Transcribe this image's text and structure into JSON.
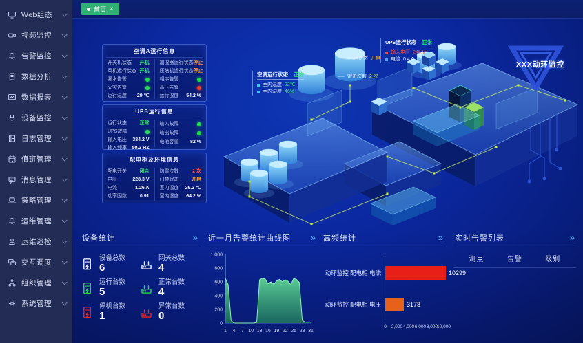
{
  "icons": {
    "more": "»",
    "close": "×"
  },
  "tab_bar": {
    "home_tab": "首页"
  },
  "sidebar": {
    "items": [
      {
        "id": "web",
        "label": "Web组态",
        "icon": "monitor-icon"
      },
      {
        "id": "video",
        "label": "视频监控",
        "icon": "camera-icon"
      },
      {
        "id": "alarm",
        "label": "告警监控",
        "icon": "bell-icon"
      },
      {
        "id": "analysis",
        "label": "数据分析",
        "icon": "doc-icon"
      },
      {
        "id": "report",
        "label": "数据报表",
        "icon": "report-icon"
      },
      {
        "id": "device",
        "label": "设备监控",
        "icon": "plug-icon"
      },
      {
        "id": "log",
        "label": "日志管理",
        "icon": "log-icon"
      },
      {
        "id": "duty",
        "label": "值班管理",
        "icon": "calendar-icon"
      },
      {
        "id": "message",
        "label": "消息管理",
        "icon": "message-icon"
      },
      {
        "id": "strategy",
        "label": "策略管理",
        "icon": "laptop-icon"
      },
      {
        "id": "ops",
        "label": "运维管理",
        "icon": "bell-icon"
      },
      {
        "id": "inspect",
        "label": "运维巡检",
        "icon": "user-icon"
      },
      {
        "id": "dispatch",
        "label": "交互调度",
        "icon": "screens-icon"
      },
      {
        "id": "org",
        "label": "组织管理",
        "icon": "org-icon"
      },
      {
        "id": "system",
        "label": "系统管理",
        "icon": "gear-icon"
      }
    ]
  },
  "info_panels": {
    "ac": {
      "title": "空调A运行信息",
      "left": [
        {
          "label": "开关机状态",
          "value": "开机",
          "color": "green"
        },
        {
          "label": "风机运行状态",
          "value": "开机",
          "color": "green"
        },
        {
          "label": "漏水告警",
          "dot": "green"
        },
        {
          "label": "火灾告警",
          "dot": "green"
        },
        {
          "label": "运行温度",
          "value": "29 ℃",
          "color": "white"
        }
      ],
      "right": [
        {
          "label": "加湿器运行状态",
          "value": "停止",
          "color": "orange"
        },
        {
          "label": "压缩机运行状态",
          "value": "停止",
          "color": "orange"
        },
        {
          "label": "相序告警",
          "dot": "green"
        },
        {
          "label": "高压告警",
          "dot": "red"
        },
        {
          "label": "运行湿度",
          "value": "54.2 %",
          "color": "white"
        }
      ]
    },
    "ups": {
      "title": "UPS运行信息",
      "left": [
        {
          "label": "运行状态",
          "value": "正常",
          "color": "green"
        },
        {
          "label": "UPS故障",
          "dot": "green"
        },
        {
          "label": "输入电压",
          "value": "384.2 V",
          "color": "white"
        },
        {
          "label": "输入频率",
          "value": "50.3 HZ",
          "color": "white"
        }
      ],
      "right": [
        {
          "label": "输入故障",
          "dot": "green"
        },
        {
          "label": "输出故障",
          "dot": "green"
        },
        {
          "label": "电池容量",
          "value": "82 %",
          "color": "white"
        }
      ]
    },
    "power": {
      "title": "配电柜及环境信息",
      "left": [
        {
          "label": "配电开关",
          "value": "闭合",
          "color": "green"
        },
        {
          "label": "电压",
          "value": "228.3 V",
          "color": "white"
        },
        {
          "label": "电流",
          "value": "1.26 A",
          "color": "white"
        },
        {
          "label": "功率因数",
          "value": "0.91",
          "color": "white"
        }
      ],
      "right": [
        {
          "label": "防雷次数",
          "value": "2 次",
          "color": "red"
        },
        {
          "label": "门禁状态",
          "value": "开启",
          "color": "orange"
        },
        {
          "label": "室内温度",
          "value": "26.2 ℃",
          "color": "white"
        },
        {
          "label": "室内湿度",
          "value": "64.2 %",
          "color": "white"
        }
      ]
    }
  },
  "scene_labels": {
    "ac": {
      "title": "空调运行状态",
      "status": "正常",
      "rows": [
        {
          "label": "室内温度",
          "value": "22℃"
        },
        {
          "label": "室内湿度",
          "value": "46%"
        }
      ]
    },
    "door": {
      "label": "门禁状态",
      "value": "开启"
    },
    "lightning": {
      "label": "雷击次数",
      "value": "2 次"
    },
    "ups": {
      "title": "UPS运行状态",
      "status": "正常",
      "rows": [
        {
          "label": "输入电压",
          "value": "245 V"
        },
        {
          "label": "电流",
          "value": "0.4 A"
        }
      ]
    }
  },
  "logo": {
    "text": "XXX动环监控"
  },
  "bottom_panels": {
    "device_stats": {
      "title": "设备统计",
      "items": [
        {
          "label": "设备总数",
          "value": "6",
          "icon": "cabinet-icon",
          "color": "white"
        },
        {
          "label": "网关总数",
          "value": "4",
          "icon": "gateway-icon",
          "color": "white"
        },
        {
          "label": "运行台数",
          "value": "5",
          "icon": "cabinet-icon",
          "color": "green"
        },
        {
          "label": "正常台数",
          "value": "4",
          "icon": "gateway-icon",
          "color": "green"
        },
        {
          "label": "停机台数",
          "value": "1",
          "icon": "cabinet-icon",
          "color": "red"
        },
        {
          "label": "异常台数",
          "value": "0",
          "icon": "gateway-icon",
          "color": "red"
        }
      ]
    },
    "alarm_curve": {
      "title": "近一月告警统计曲线图"
    },
    "high_freq": {
      "title": "高频统计"
    },
    "alarm_list": {
      "title": "实时告警列表",
      "columns": [
        "测点",
        "告警",
        "级别"
      ],
      "rows": []
    }
  },
  "chart_data": [
    {
      "type": "area",
      "title": "近一月告警统计曲线图",
      "x": [
        1,
        2,
        3,
        4,
        5,
        6,
        7,
        8,
        9,
        10,
        11,
        12,
        13,
        14,
        15,
        16,
        17,
        18,
        19,
        20,
        21,
        22,
        23,
        24,
        25,
        26,
        27,
        28,
        29,
        30,
        31
      ],
      "values": [
        650,
        560,
        40,
        0,
        0,
        0,
        0,
        0,
        0,
        0,
        0,
        10,
        630,
        655,
        640,
        575,
        600,
        565,
        615,
        635,
        600,
        630,
        610,
        560,
        650,
        635,
        590,
        40,
        15,
        15,
        15
      ],
      "xticks": [
        1,
        4,
        7,
        10,
        13,
        16,
        19,
        22,
        25,
        28,
        31
      ],
      "yticks": [
        "0",
        "200",
        "400",
        "600",
        "800",
        "1,000"
      ],
      "ylim": [
        0,
        1000
      ],
      "xlabel": "",
      "ylabel": "",
      "grid": false,
      "line_color": "#8ff0b8",
      "fill_color": "#49b97e"
    },
    {
      "type": "bar",
      "orientation": "horizontal",
      "title": "高频统计",
      "categories": [
        "动环监控 配电柜 电流",
        "动环监控 配电柜 电压"
      ],
      "values": [
        10299,
        3178
      ],
      "bar_colors": [
        "#e71f18",
        "#e8611a"
      ],
      "xticks": [
        "0",
        "2,000",
        "4,000",
        "6,000",
        "8,000",
        "10,000"
      ],
      "xlim": [
        0,
        10000
      ],
      "grid": false,
      "legend": "none"
    }
  ]
}
